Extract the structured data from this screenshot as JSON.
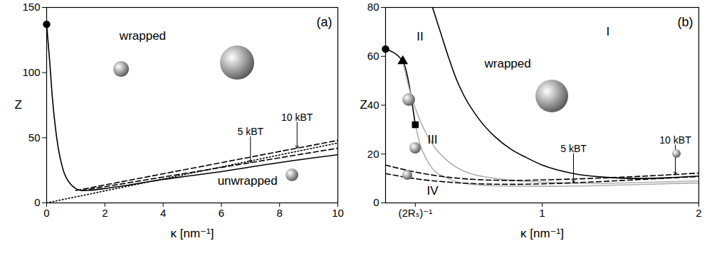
{
  "chart_data": [
    {
      "type": "line",
      "title": "(a)",
      "xlabel": "κ [nm⁻¹]",
      "ylabel": "Z",
      "xlim": [
        0,
        10
      ],
      "ylim": [
        0,
        150
      ],
      "xticks": [
        0,
        2,
        4,
        6,
        8,
        10
      ],
      "yticks": [
        0,
        50,
        100,
        150
      ],
      "annotations": [
        "wrapped",
        "unwrapped"
      ],
      "series": [
        {
          "color": "#000000",
          "line_style": "solid",
          "x": [
            0,
            0.1,
            0.2,
            0.3,
            0.4,
            0.5,
            0.6,
            0.8,
            1.0,
            1.2,
            1.5,
            2,
            4,
            6,
            8,
            10
          ],
          "values": [
            137,
            110,
            80,
            58,
            42,
            31,
            23,
            15,
            11,
            9.5,
            9.7,
            11,
            18,
            24,
            31,
            37
          ]
        },
        {
          "name": "5 kBT",
          "color": "#000000",
          "line_style": "dashed",
          "x": [
            1.2,
            10
          ],
          "values": [
            9.5,
            42
          ]
        },
        {
          "name": "10 kBT",
          "color": "#000000",
          "line_style": "dashed",
          "x": [
            1.0,
            10
          ],
          "values": [
            9.5,
            48
          ]
        },
        {
          "color": "#000000",
          "line_style": "dotted",
          "x": [
            0,
            10
          ],
          "values": [
            0,
            46
          ]
        },
        {
          "type": "scatter",
          "color": "#000000",
          "marker": "circle",
          "x": [
            0
          ],
          "values": [
            137
          ]
        }
      ]
    },
    {
      "type": "line",
      "title": "(b)",
      "xlabel": "κ [nm⁻¹]",
      "ylabel": "Z",
      "xlim": [
        0,
        2
      ],
      "ylim": [
        0,
        80
      ],
      "xticks": [
        {
          "value": 0.19,
          "label": "(2Rₛ)⁻¹"
        },
        1,
        2
      ],
      "yticks": [
        0,
        20,
        40,
        60,
        80
      ],
      "annotations": [
        "wrapped",
        "I",
        "II",
        "III",
        "IV"
      ],
      "series": [
        {
          "color": "#000000",
          "line_style": "solid",
          "x": [
            0.3,
            0.35,
            0.4,
            0.45,
            0.5,
            0.6,
            0.7,
            0.8,
            0.9,
            1.0,
            1.2,
            1.4,
            1.6,
            1.8,
            2.0
          ],
          "values": [
            80,
            70,
            60,
            51,
            44,
            34,
            27,
            22,
            18.5,
            15.5,
            12,
            10.5,
            10,
            10.3,
            11
          ]
        },
        {
          "color": "#000000",
          "line_style": "solid",
          "x": [
            0,
            0.11,
            0.19
          ],
          "values": [
            63,
            58,
            32
          ]
        },
        {
          "color": "#b0b0b0",
          "line_style": "solid",
          "x": [
            0.11,
            0.15,
            0.2,
            0.3,
            0.4,
            0.5,
            0.7,
            1.0,
            1.3,
            1.6,
            2.0
          ],
          "values": [
            58,
            47,
            37,
            24,
            17,
            13,
            10,
            8.5,
            8,
            8.3,
            9
          ]
        },
        {
          "color": "#b0b0b0",
          "line_style": "solid",
          "x": [
            0.19,
            0.22,
            0.26,
            0.3,
            0.4,
            0.5,
            0.7,
            1.0,
            1.3,
            1.6,
            2.0
          ],
          "values": [
            32,
            24,
            18,
            14,
            10,
            8,
            7,
            6.8,
            7,
            7.5,
            8.2
          ]
        },
        {
          "name": "10 kBT",
          "color": "#000000",
          "line_style": "dashed",
          "x": [
            0,
            0.2,
            0.4,
            0.6,
            0.8,
            1.0,
            1.3,
            1.6,
            2.0
          ],
          "values": [
            15.5,
            12.5,
            10.5,
            9.5,
            9.2,
            9.4,
            10,
            10.8,
            12.2
          ]
        },
        {
          "name": "5 kBT",
          "color": "#000000",
          "line_style": "dashed",
          "x": [
            0,
            0.2,
            0.4,
            0.6,
            0.8,
            1.0,
            1.3,
            1.6,
            2.0
          ],
          "values": [
            12,
            9.8,
            8.5,
            7.8,
            7.6,
            7.8,
            8.5,
            9.5,
            10.8
          ]
        },
        {
          "type": "scatter",
          "color": "#000000",
          "marker": "circle",
          "x": [
            0
          ],
          "values": [
            63
          ]
        },
        {
          "type": "scatter",
          "color": "#000000",
          "marker": "triangle",
          "x": [
            0.11
          ],
          "values": [
            58
          ]
        },
        {
          "type": "scatter",
          "color": "#000000",
          "marker": "square",
          "x": [
            0.19
          ],
          "values": [
            32
          ]
        }
      ]
    }
  ]
}
